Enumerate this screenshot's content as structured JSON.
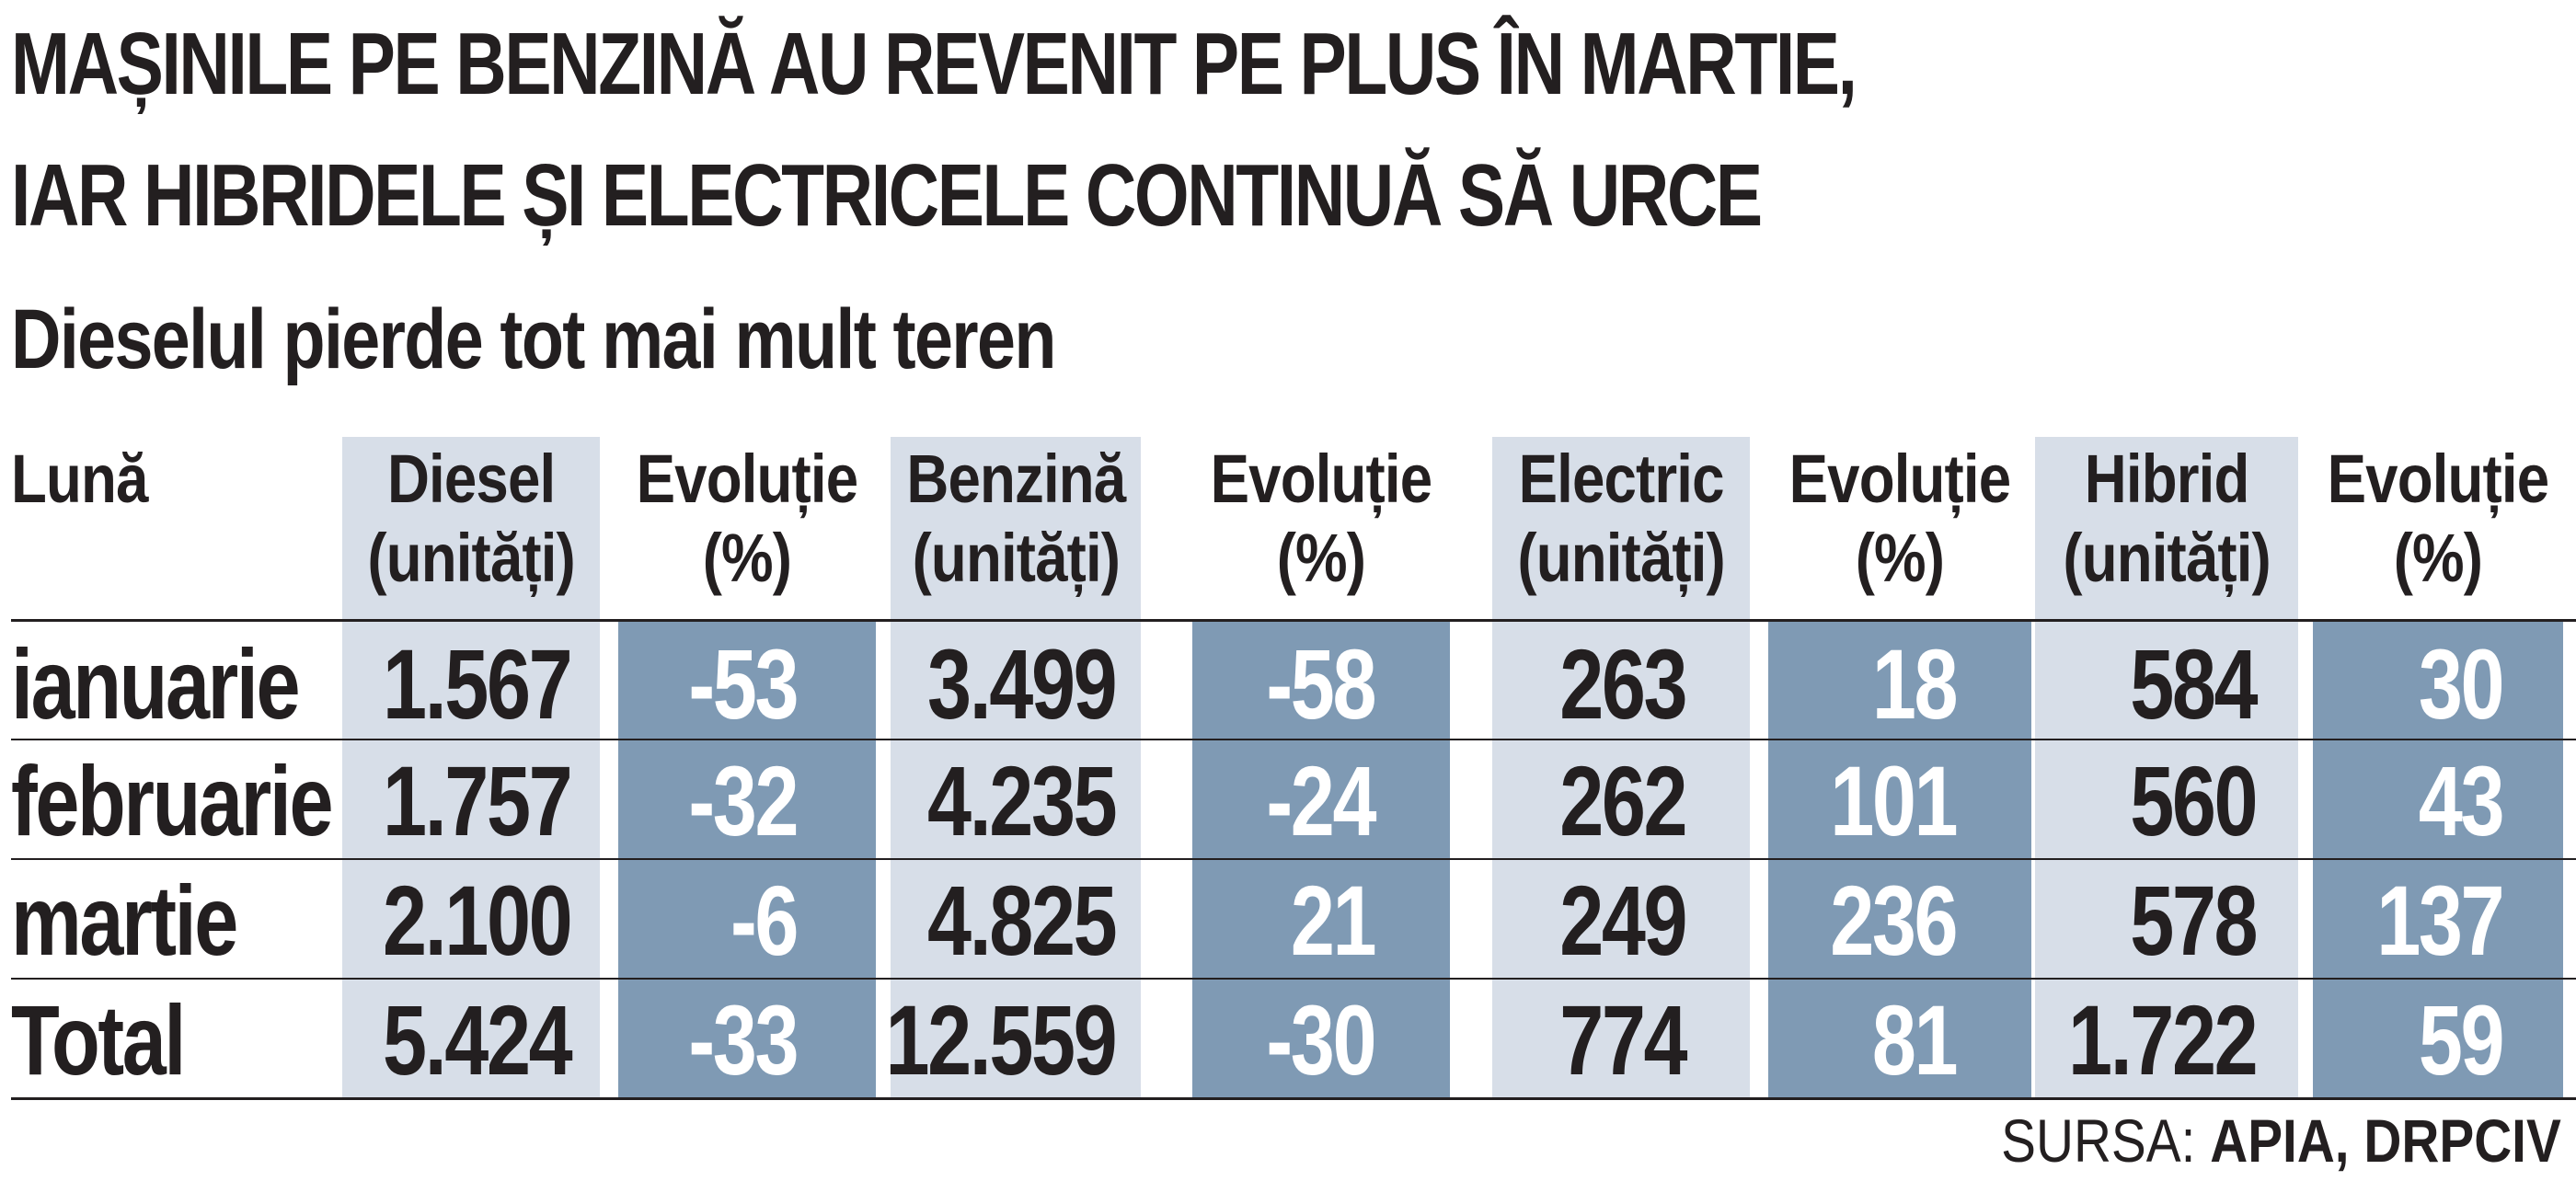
{
  "title_line1": "MAȘINILE PE BENZINĂ AU REVENIT PE PLUS ÎN MARTIE,",
  "title_line2": "IAR HIBRIDELE ȘI ELECTRICELE CONTINUĂ SĂ URCE",
  "subtitle": "Dieselul pierde tot mai mult teren",
  "source_prefix": "SURSA: ",
  "source_names": "APIA, DRPCIV",
  "colors": {
    "light_column": "#d7dee8",
    "dark_column": "#7f9ab4",
    "text": "#231f20"
  },
  "chart_data": {
    "type": "table",
    "columns": [
      "Lună",
      "Diesel\n(unități)",
      "Evoluție\n(%)",
      "Benzină\n(unități)",
      "Evoluție\n(%)",
      "Electric\n(unități)",
      "Evoluție\n(%)",
      "Hibrid\n(unități)",
      "Evoluție\n(%)"
    ],
    "rows": [
      [
        "ianuarie",
        "1.567",
        "-53",
        "3.499",
        "-58",
        "263",
        "18",
        "584",
        "30"
      ],
      [
        "februarie",
        "1.757",
        "-32",
        "4.235",
        "-24",
        "262",
        "101",
        "560",
        "43"
      ],
      [
        "martie",
        "2.100",
        "-6",
        "4.825",
        "21",
        "249",
        "236",
        "578",
        "137"
      ],
      [
        "Total",
        "5.424",
        "-33",
        "12.559",
        "-30",
        "774",
        "81",
        "1.722",
        "59"
      ]
    ]
  }
}
